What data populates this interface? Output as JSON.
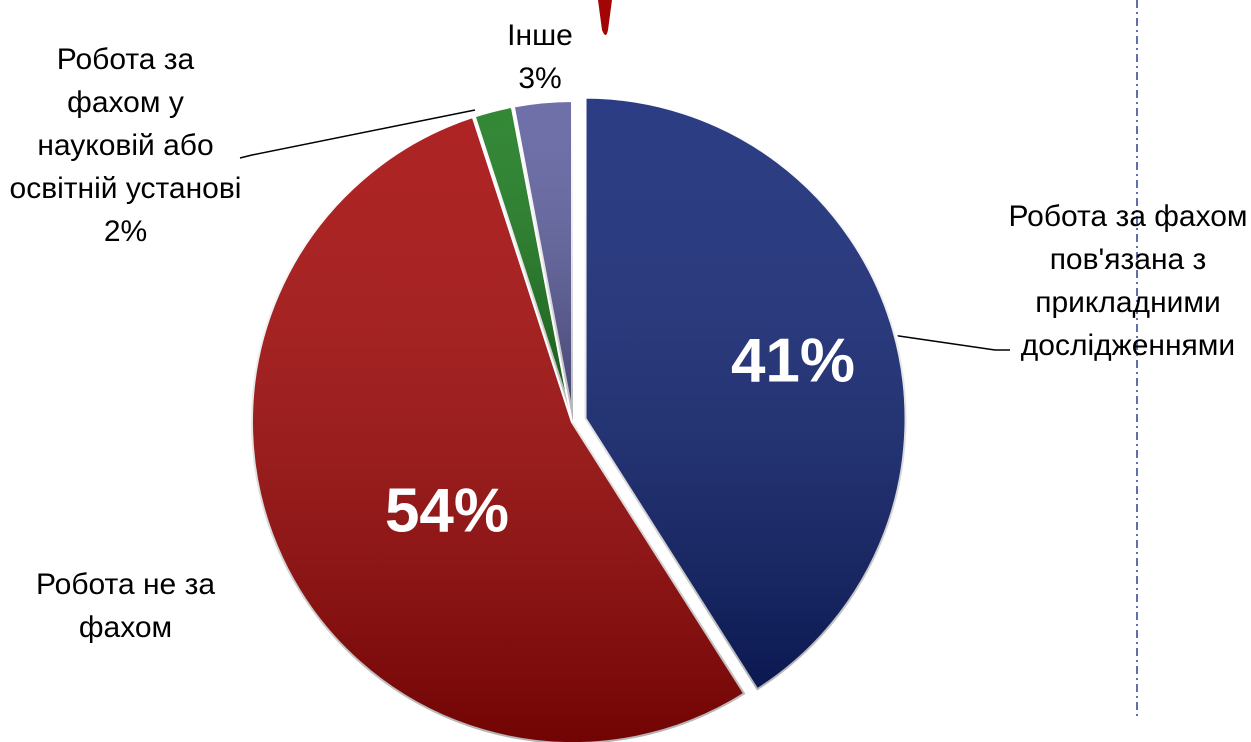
{
  "chart_data": {
    "type": "pie",
    "categories": [
      "Робота за фахом пов'язана з прикладними дослідженнями",
      "Робота не за фахом",
      "Робота за фахом у науковій або освітній установі",
      "Інше"
    ],
    "values": [
      41,
      54,
      2,
      3
    ],
    "value_labels": [
      "41%",
      "54%",
      "2%",
      "3%"
    ],
    "colors": [
      "#0f2273",
      "#a30505",
      "#17781a",
      "#5c5d9e"
    ]
  }
}
